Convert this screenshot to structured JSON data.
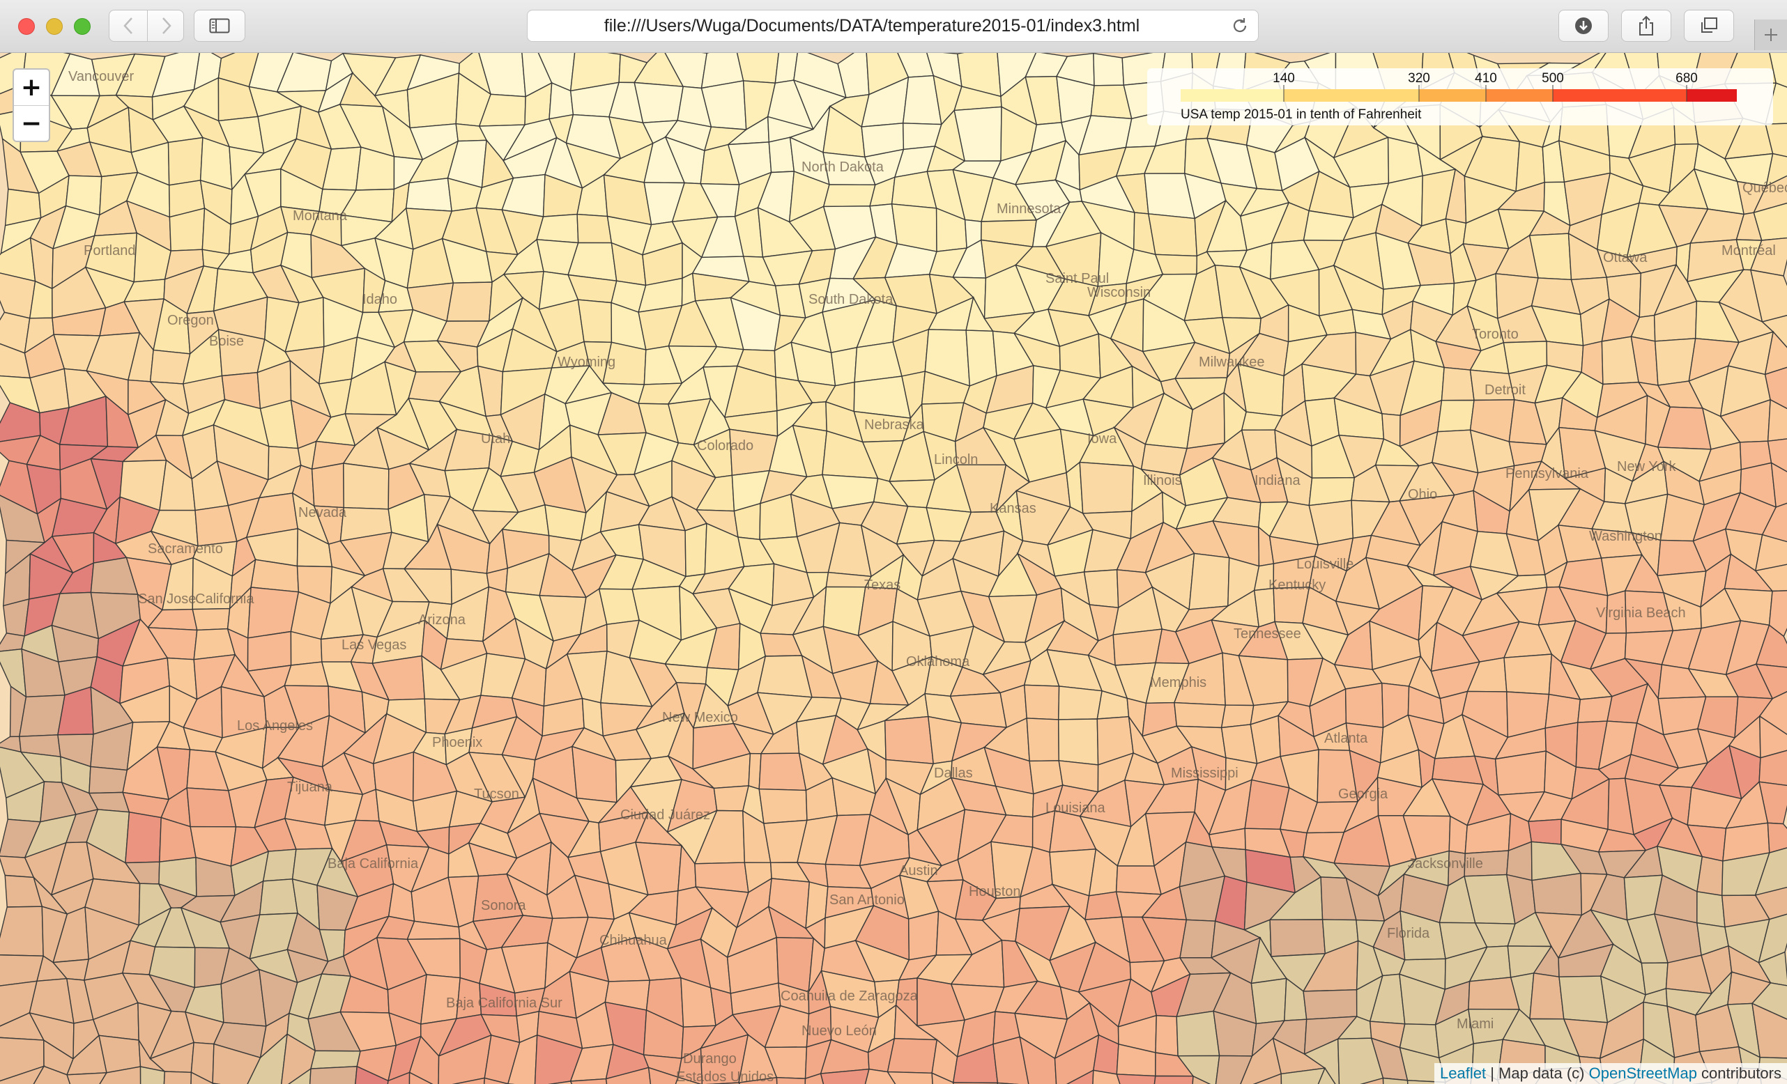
{
  "browser": {
    "url": "file:///Users/Wuga/Documents/DATA/temperature2015-01/index3.html"
  },
  "map": {
    "zoom_in_label": "+",
    "zoom_out_label": "−",
    "place_labels": [
      "Vancouver",
      "Portland",
      "Boise",
      "Sacramento",
      "San Jose",
      "Los Angeles",
      "Tijuana",
      "Las Vegas",
      "Phoenix",
      "Tucson",
      "Ciudad Juárez",
      "Nevada",
      "California",
      "Idaho",
      "Oregon",
      "Montana",
      "North Dakota",
      "South Dakota",
      "Minnesota",
      "Wisconsin",
      "Wyoming",
      "Nebraska",
      "Lincoln",
      "Colorado",
      "Oklahoma",
      "New Mexico",
      "Dallas",
      "Austin",
      "San Antonio",
      "Houston",
      "Memphis",
      "Atlanta",
      "Louisville",
      "Detroit",
      "Milwaukee",
      "Toronto",
      "Ottawa",
      "Montréal",
      "Québec",
      "Washington",
      "Virginia Beach",
      "Jacksonville",
      "Florida",
      "Miami",
      "Baja California",
      "Baja California Sur",
      "Sonora",
      "Chihuahua",
      "Coahuila de Zaragoza",
      "Nuevo León",
      "Durango",
      "Estados Unidos",
      "Saint Paul",
      "Georgia",
      "Tennessee",
      "Kentucky",
      "Mississippi",
      "Louisiana",
      "Texas",
      "Kansas",
      "Iowa",
      "Illinois",
      "Indiana",
      "Ohio",
      "Pennsylvania",
      "New York",
      "Utah",
      "Arizona"
    ],
    "legend": {
      "title": "USA temp 2015-01 in tenth of Fahrenheit",
      "ticks": [
        "140",
        "320",
        "410",
        "500",
        "680"
      ],
      "colors": [
        "#fff3b0",
        "#fed976",
        "#feb24c",
        "#fd8d3c",
        "#fc4e2a",
        "#e31a1c"
      ]
    },
    "attribution": {
      "leaflet": "Leaflet",
      "separator": " | Map data (c) ",
      "osm": "OpenStreetMap",
      "suffix": " contributors"
    },
    "palette": [
      "#fffbd5",
      "#fff2b8",
      "#fde7a6",
      "#fbd8a0",
      "#f9c694",
      "#f6b38a",
      "#f1a07e",
      "#e98876",
      "#dd6e6e",
      "#d6a888",
      "#d8c79a",
      "#e4b189"
    ]
  }
}
